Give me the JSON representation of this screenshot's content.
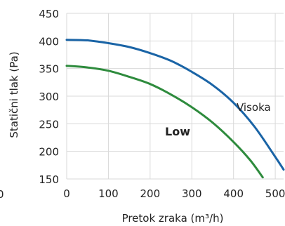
{
  "chart_data": {
    "type": "line",
    "title": "",
    "xlabel": "Pretok zraka (m³/h)",
    "ylabel": "Statični tlak (Pa)",
    "xlim": [
      0,
      520
    ],
    "ylim": [
      150,
      450
    ],
    "x_ticks": [
      "0",
      "100",
      "200",
      "300",
      "400",
      "500"
    ],
    "y_ticks": [
      "150",
      "200",
      "250",
      "300",
      "350",
      "400",
      "450"
    ],
    "left_edge_fragment": "0",
    "grid": true,
    "series": [
      {
        "name": "Visoka",
        "color": "#1a64a6",
        "points": [
          [
            0,
            402
          ],
          [
            50,
            401
          ],
          [
            100,
            396
          ],
          [
            150,
            389
          ],
          [
            200,
            378
          ],
          [
            250,
            364
          ],
          [
            300,
            344
          ],
          [
            350,
            320
          ],
          [
            400,
            288
          ],
          [
            450,
            245
          ],
          [
            500,
            190
          ],
          [
            520,
            167
          ]
        ]
      },
      {
        "name": "Low",
        "color": "#2e8b3d",
        "points": [
          [
            0,
            355
          ],
          [
            50,
            352
          ],
          [
            100,
            346
          ],
          [
            150,
            335
          ],
          [
            200,
            322
          ],
          [
            250,
            303
          ],
          [
            300,
            280
          ],
          [
            350,
            252
          ],
          [
            400,
            217
          ],
          [
            440,
            184
          ],
          [
            470,
            153
          ]
        ]
      }
    ]
  }
}
